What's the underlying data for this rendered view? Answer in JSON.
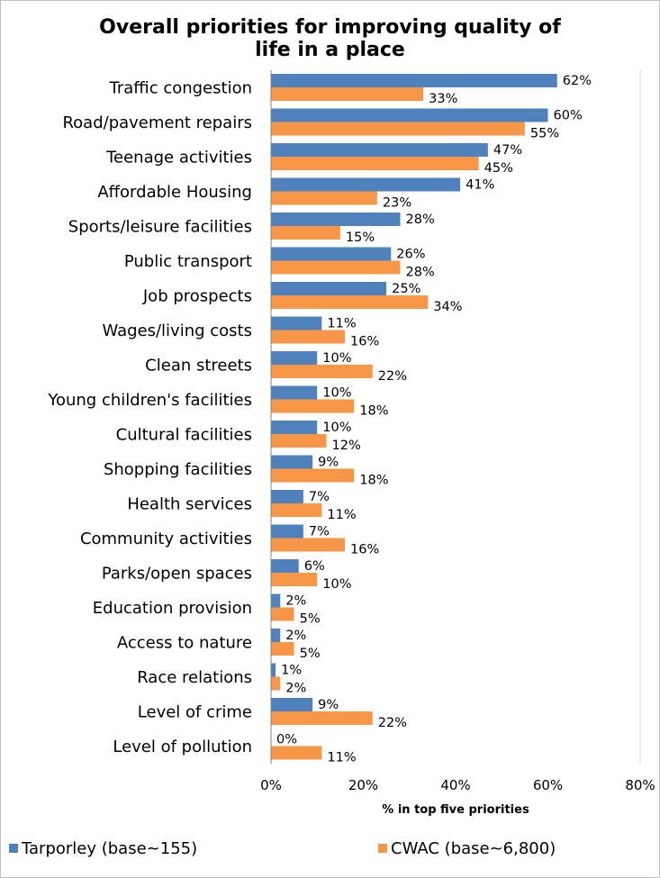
{
  "chart_data": {
    "type": "bar",
    "orientation": "horizontal",
    "title_line1": "Overall priorities for improving quality of",
    "title_line2": "life in a place",
    "xlabel": "% in top five priorities",
    "xlim": [
      0,
      80
    ],
    "xticks": [
      "0%",
      "20%",
      "40%",
      "60%",
      "80%"
    ],
    "grid": false,
    "legend_position": "bottom",
    "categories": [
      "Traffic congestion",
      "Road/pavement repairs",
      "Teenage activities",
      "Affordable Housing",
      "Sports/leisure facilities",
      "Public transport",
      "Job prospects",
      "Wages/living costs",
      "Clean streets",
      "Young children's facilities",
      "Cultural facilities",
      "Shopping facilities",
      "Health services",
      "Community activities",
      "Parks/open spaces",
      "Education provision",
      "Access to nature",
      "Race relations",
      "Level of crime",
      "Level of pollution"
    ],
    "series": [
      {
        "name": "Tarporley (base~155)",
        "color": "#4f81bd",
        "values": [
          62,
          60,
          47,
          41,
          28,
          26,
          25,
          11,
          10,
          10,
          10,
          9,
          7,
          7,
          6,
          2,
          2,
          1,
          9,
          0
        ]
      },
      {
        "name": "CWAC (base~6,800)",
        "color": "#f79646",
        "values": [
          33,
          55,
          45,
          23,
          15,
          28,
          34,
          16,
          22,
          18,
          12,
          18,
          11,
          16,
          10,
          5,
          5,
          2,
          22,
          11
        ]
      }
    ]
  }
}
